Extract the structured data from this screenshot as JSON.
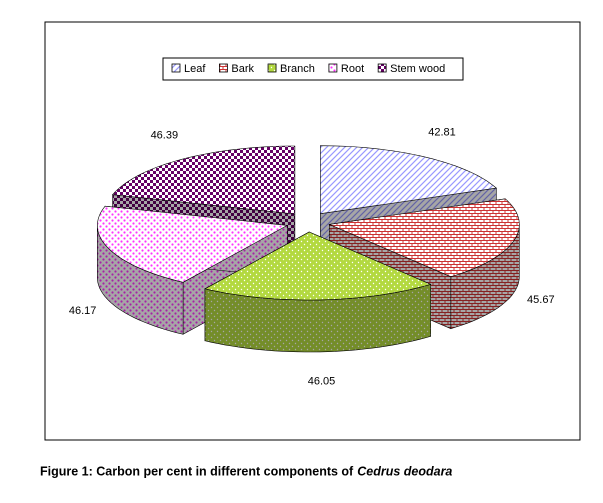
{
  "chart_data": {
    "type": "pie",
    "categories": [
      "Leaf",
      "Bark",
      "Branch",
      "Root",
      "Stem wood"
    ],
    "values": [
      42.81,
      45.67,
      46.05,
      46.17,
      46.39
    ],
    "colors": [
      "#9999ff",
      "#cc3333",
      "#99cc00",
      "#ff33ff",
      "#660066"
    ],
    "legend": "top",
    "caption": [
      "Figure 1: Carbon per cent in different components of",
      "Cedrus deodara"
    ]
  }
}
